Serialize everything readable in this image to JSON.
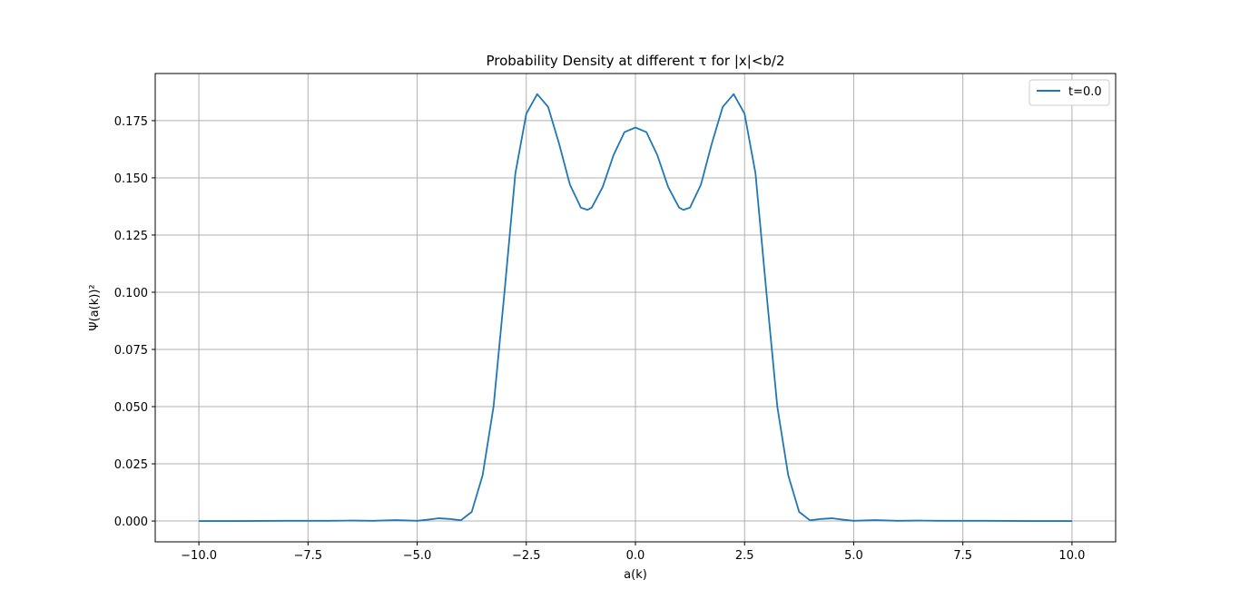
{
  "chart_data": {
    "type": "line",
    "title": "Probability Density at different τ for |x|<b/2",
    "x_label": "a(k)",
    "y_label": "Ψ(a(k))²",
    "x": [
      -10,
      -9,
      -8,
      -7,
      -6.5,
      -6,
      -5.5,
      -5,
      -4.75,
      -4.5,
      -4.25,
      -4,
      -3.75,
      -3.5,
      -3.25,
      -3,
      -2.75,
      -2.5,
      -2.25,
      -2,
      -1.75,
      -1.5,
      -1.25,
      -1.1,
      -1,
      -0.75,
      -0.5,
      -0.25,
      0,
      0.25,
      0.5,
      0.75,
      1,
      1.1,
      1.25,
      1.5,
      1.75,
      2,
      2.25,
      2.5,
      2.75,
      3,
      3.25,
      3.5,
      3.75,
      4,
      4.25,
      4.5,
      4.75,
      5,
      5.5,
      6,
      6.5,
      7,
      8,
      9,
      10
    ],
    "series": [
      {
        "name": "t=0.0",
        "color": "#1f77b4",
        "values": [
          0,
          0,
          0.0001,
          0.0001,
          0.0002,
          0.0001,
          0.0004,
          0.0001,
          0.0006,
          0.0012,
          0.0009,
          0.0003,
          0.004,
          0.02,
          0.05,
          0.1,
          0.152,
          0.178,
          0.1866,
          0.181,
          0.165,
          0.147,
          0.137,
          0.136,
          0.137,
          0.146,
          0.16,
          0.17,
          0.172,
          0.17,
          0.16,
          0.146,
          0.137,
          0.136,
          0.137,
          0.147,
          0.165,
          0.181,
          0.1866,
          0.178,
          0.152,
          0.1,
          0.05,
          0.02,
          0.004,
          0.0003,
          0.0009,
          0.0012,
          0.0006,
          0.0001,
          0.0004,
          0.0001,
          0.0002,
          0.0001,
          0.0001,
          0,
          0
        ]
      }
    ],
    "xlim": [
      -11,
      11
    ],
    "ylim": [
      -0.0091,
      0.1956
    ],
    "xticks": [
      {
        "value": -10,
        "label": "−10.0"
      },
      {
        "value": -7.5,
        "label": "−7.5"
      },
      {
        "value": -5,
        "label": "−5.0"
      },
      {
        "value": -2.5,
        "label": "−2.5"
      },
      {
        "value": 0,
        "label": "0.0"
      },
      {
        "value": 2.5,
        "label": "2.5"
      },
      {
        "value": 5,
        "label": "5.0"
      },
      {
        "value": 7.5,
        "label": "7.5"
      },
      {
        "value": 10,
        "label": "10.0"
      }
    ],
    "yticks": [
      {
        "value": 0,
        "label": "0.000"
      },
      {
        "value": 0.025,
        "label": "0.025"
      },
      {
        "value": 0.05,
        "label": "0.050"
      },
      {
        "value": 0.075,
        "label": "0.075"
      },
      {
        "value": 0.1,
        "label": "0.100"
      },
      {
        "value": 0.125,
        "label": "0.125"
      },
      {
        "value": 0.15,
        "label": "0.150"
      },
      {
        "value": 0.175,
        "label": "0.175"
      }
    ],
    "grid": true,
    "legend": "upper right"
  }
}
